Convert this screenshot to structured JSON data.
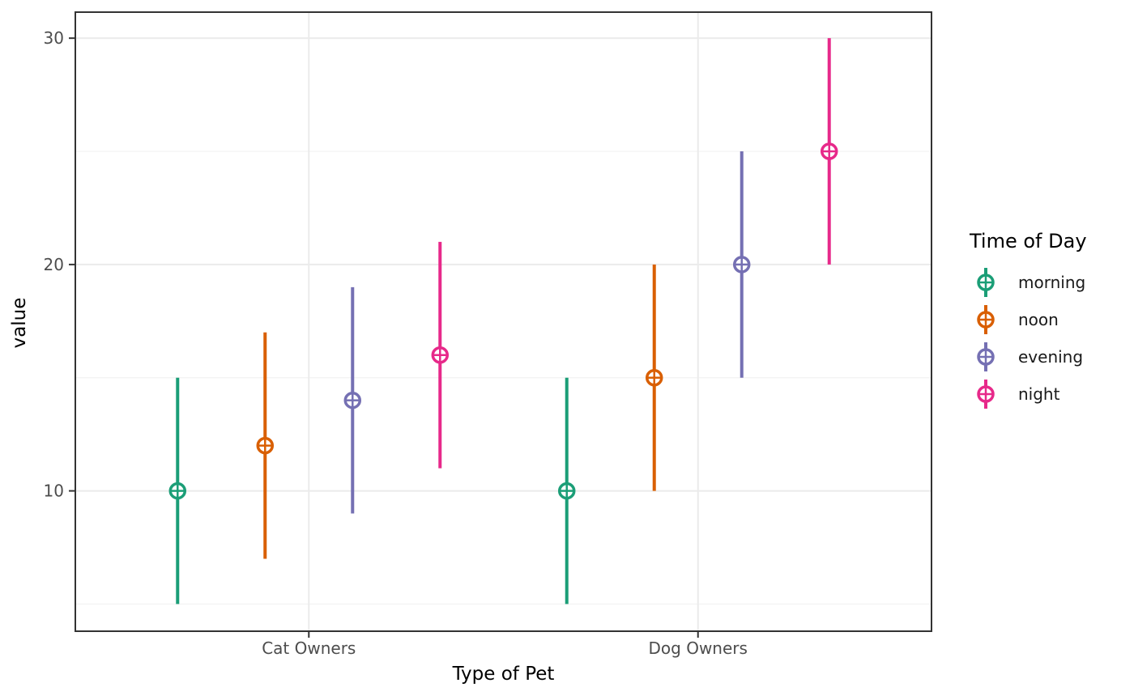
{
  "chart_data": {
    "type": "pointrange",
    "title": "",
    "xlabel": "Type of Pet",
    "ylabel": "value",
    "categories": [
      "Cat Owners",
      "Dog Owners"
    ],
    "y_ticks": [
      10,
      20,
      30
    ],
    "y_tick_labels": [
      "10",
      "20",
      "30"
    ],
    "y_minor_gridlines": [
      5,
      15,
      25
    ],
    "ylim": [
      3.8,
      31.15
    ],
    "grid": true,
    "point_shape": "circle-plus",
    "legend": {
      "title": "Time of Day",
      "position": "right"
    },
    "series": [
      {
        "name": "morning",
        "color": "#1B9E77",
        "points": [
          {
            "category": "Cat Owners",
            "y": 10,
            "ymin": 5,
            "ymax": 15
          },
          {
            "category": "Dog Owners",
            "y": 10,
            "ymin": 5,
            "ymax": 15
          }
        ]
      },
      {
        "name": "noon",
        "color": "#D95F02",
        "points": [
          {
            "category": "Cat Owners",
            "y": 12,
            "ymin": 7,
            "ymax": 17
          },
          {
            "category": "Dog Owners",
            "y": 15,
            "ymin": 10,
            "ymax": 20
          }
        ]
      },
      {
        "name": "evening",
        "color": "#7570B3",
        "points": [
          {
            "category": "Cat Owners",
            "y": 14,
            "ymin": 9,
            "ymax": 19
          },
          {
            "category": "Dog Owners",
            "y": 20,
            "ymin": 15,
            "ymax": 25
          }
        ]
      },
      {
        "name": "night",
        "color": "#E7298A",
        "points": [
          {
            "category": "Cat Owners",
            "y": 16,
            "ymin": 11,
            "ymax": 21
          },
          {
            "category": "Dog Owners",
            "y": 25,
            "ymin": 20,
            "ymax": 30
          }
        ]
      }
    ],
    "theme": {
      "background": "#FFFFFF",
      "panel_background": "#FFFFFF",
      "grid_major": "#EBEBEB",
      "grid_minor": "#F3F3F3",
      "panel_border": "#333333",
      "tick_color": "#333333",
      "tick_label_color": "#4D4D4D",
      "text_color": "#000000"
    }
  }
}
